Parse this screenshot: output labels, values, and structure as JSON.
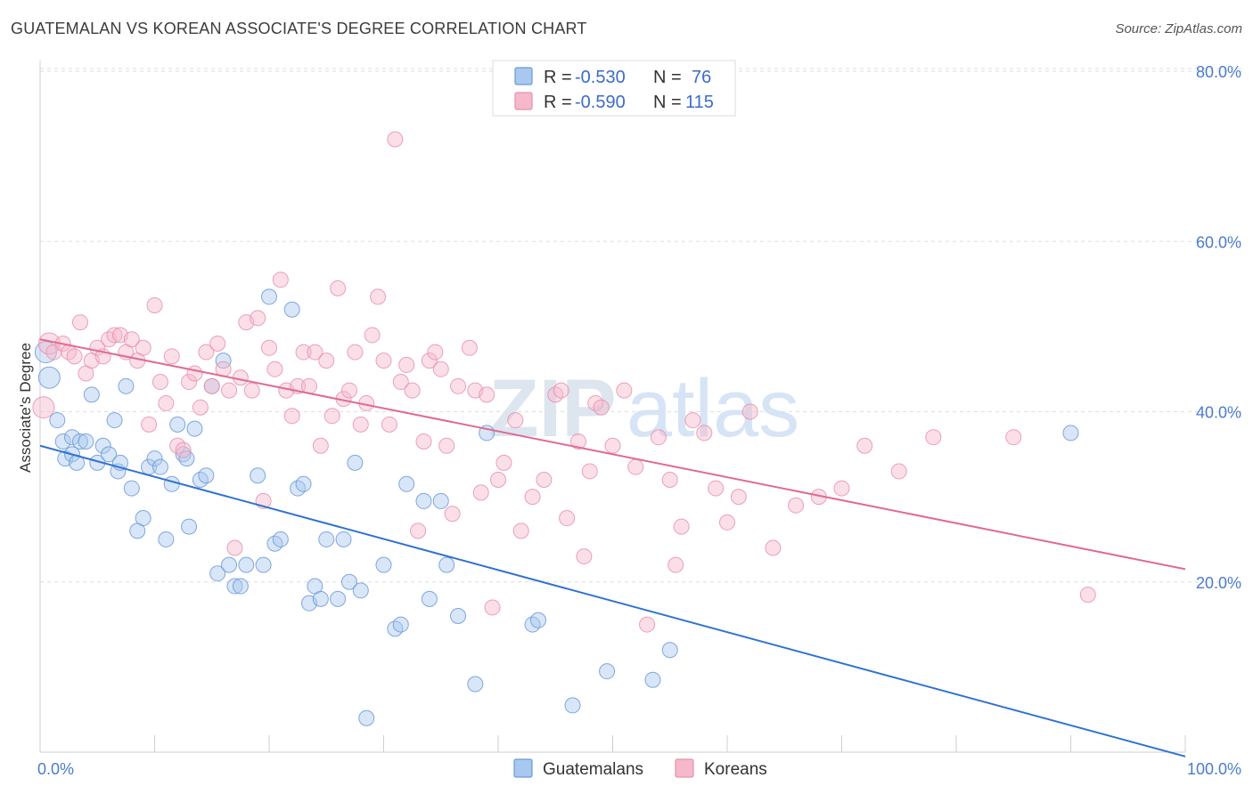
{
  "header": {
    "title": "GUATEMALAN VS KOREAN ASSOCIATE'S DEGREE CORRELATION CHART",
    "source": "Source: ZipAtlas.com"
  },
  "watermark": "ZIPatlas",
  "colors": {
    "guatemalan_fill": "#a8c8f0",
    "guatemalan_stroke": "#6a9ad8",
    "guatemalan_line": "#2f72d0",
    "korean_fill": "#f6b8cb",
    "korean_stroke": "#e890aa",
    "korean_line": "#e06a92"
  },
  "legend": {
    "rows": [
      {
        "r_label": "R = ",
        "r_value": "-0.530",
        "n_label": "N = ",
        "n_value": "76"
      },
      {
        "r_label": "R = ",
        "r_value": "-0.590",
        "n_label": "N = ",
        "n_value": "115"
      }
    ]
  },
  "chart_data": {
    "type": "scatter",
    "title": "GUATEMALAN VS KOREAN ASSOCIATE'S DEGREE CORRELATION CHART",
    "xlabel": "",
    "ylabel": "Associate's Degree",
    "xlim": [
      0,
      100
    ],
    "ylim": [
      0,
      80
    ],
    "x_tick_labels": [
      "0.0%",
      "100.0%"
    ],
    "y_ticks": [
      20,
      40,
      60,
      80
    ],
    "y_tick_labels": [
      "20.0%",
      "40.0%",
      "60.0%",
      "80.0%"
    ],
    "grid": true,
    "legend_position": "top-center",
    "series": [
      {
        "name": "Guatemalans",
        "r": -0.53,
        "n": 76,
        "trend": {
          "x": [
            0,
            100
          ],
          "y": [
            36.0,
            -0.5
          ]
        },
        "points": [
          [
            0.5,
            47.0
          ],
          [
            0.8,
            44.0
          ],
          [
            1.5,
            39.0
          ],
          [
            2.0,
            36.5
          ],
          [
            2.2,
            34.5
          ],
          [
            2.8,
            37.0
          ],
          [
            3.5,
            36.5
          ],
          [
            4.0,
            36.5
          ],
          [
            4.5,
            42.0
          ],
          [
            5.0,
            34.0
          ],
          [
            5.5,
            36.0
          ],
          [
            6.0,
            35.0
          ],
          [
            6.5,
            39.0
          ],
          [
            6.8,
            33.0
          ],
          [
            7.0,
            34.0
          ],
          [
            7.5,
            43.0
          ],
          [
            8.0,
            31.0
          ],
          [
            8.5,
            26.0
          ],
          [
            9.0,
            27.5
          ],
          [
            9.5,
            33.5
          ],
          [
            10.0,
            34.5
          ],
          [
            10.5,
            33.5
          ],
          [
            11.0,
            25.0
          ],
          [
            11.5,
            31.5
          ],
          [
            12.0,
            38.5
          ],
          [
            12.5,
            35.0
          ],
          [
            12.8,
            34.5
          ],
          [
            13.0,
            26.5
          ],
          [
            13.5,
            38.0
          ],
          [
            14.0,
            32.0
          ],
          [
            14.5,
            32.5
          ],
          [
            15.0,
            43.0
          ],
          [
            15.5,
            21.0
          ],
          [
            16.0,
            46.0
          ],
          [
            16.5,
            22.0
          ],
          [
            17.0,
            19.5
          ],
          [
            17.5,
            19.5
          ],
          [
            18.0,
            22.0
          ],
          [
            19.0,
            32.5
          ],
          [
            19.5,
            22.0
          ],
          [
            20.0,
            53.5
          ],
          [
            20.5,
            24.5
          ],
          [
            21.0,
            25.0
          ],
          [
            22.0,
            52.0
          ],
          [
            22.5,
            31.0
          ],
          [
            23.0,
            31.5
          ],
          [
            23.5,
            17.5
          ],
          [
            24.0,
            19.5
          ],
          [
            24.5,
            18.0
          ],
          [
            25.0,
            25.0
          ],
          [
            26.0,
            18.0
          ],
          [
            26.5,
            25.0
          ],
          [
            27.0,
            20.0
          ],
          [
            27.5,
            34.0
          ],
          [
            28.0,
            19.0
          ],
          [
            28.5,
            4.0
          ],
          [
            30.0,
            22.0
          ],
          [
            31.0,
            14.5
          ],
          [
            31.5,
            15.0
          ],
          [
            32.0,
            31.5
          ],
          [
            33.5,
            29.5
          ],
          [
            34.0,
            18.0
          ],
          [
            35.0,
            29.5
          ],
          [
            35.5,
            22.0
          ],
          [
            36.5,
            16.0
          ],
          [
            38.0,
            8.0
          ],
          [
            39.0,
            37.5
          ],
          [
            43.0,
            15.0
          ],
          [
            43.5,
            15.5
          ],
          [
            46.5,
            5.5
          ],
          [
            49.5,
            9.5
          ],
          [
            53.5,
            8.5
          ],
          [
            55.0,
            12.0
          ],
          [
            90.0,
            37.5
          ],
          [
            2.8,
            35.0
          ],
          [
            3.2,
            34.0
          ]
        ]
      },
      {
        "name": "Koreans",
        "r": -0.59,
        "n": 115,
        "trend": {
          "x": [
            0,
            100
          ],
          "y": [
            48.5,
            21.5
          ]
        },
        "points": [
          [
            0.3,
            40.5
          ],
          [
            0.8,
            48.0
          ],
          [
            1.2,
            47.0
          ],
          [
            2.0,
            48.0
          ],
          [
            2.5,
            47.0
          ],
          [
            3.0,
            46.5
          ],
          [
            3.5,
            50.5
          ],
          [
            4.0,
            44.5
          ],
          [
            4.5,
            46.0
          ],
          [
            5.0,
            47.5
          ],
          [
            5.5,
            46.5
          ],
          [
            6.0,
            48.5
          ],
          [
            6.5,
            49.0
          ],
          [
            7.0,
            49.0
          ],
          [
            7.5,
            47.0
          ],
          [
            8.0,
            48.5
          ],
          [
            8.5,
            46.0
          ],
          [
            9.0,
            47.5
          ],
          [
            9.5,
            38.5
          ],
          [
            10.0,
            52.5
          ],
          [
            10.5,
            43.5
          ],
          [
            11.0,
            41.0
          ],
          [
            11.5,
            46.5
          ],
          [
            12.0,
            36.0
          ],
          [
            12.5,
            35.5
          ],
          [
            13.0,
            43.5
          ],
          [
            13.5,
            44.5
          ],
          [
            14.0,
            40.5
          ],
          [
            14.5,
            47.0
          ],
          [
            15.0,
            43.0
          ],
          [
            15.5,
            48.0
          ],
          [
            16.0,
            45.0
          ],
          [
            16.5,
            42.5
          ],
          [
            17.0,
            24.0
          ],
          [
            17.5,
            44.0
          ],
          [
            18.0,
            50.5
          ],
          [
            18.5,
            42.5
          ],
          [
            19.0,
            51.0
          ],
          [
            19.5,
            29.5
          ],
          [
            20.0,
            47.5
          ],
          [
            20.5,
            45.0
          ],
          [
            21.0,
            55.5
          ],
          [
            21.5,
            42.5
          ],
          [
            22.0,
            39.5
          ],
          [
            22.5,
            43.0
          ],
          [
            23.0,
            47.0
          ],
          [
            23.5,
            43.0
          ],
          [
            24.0,
            47.0
          ],
          [
            24.5,
            36.0
          ],
          [
            25.0,
            46.0
          ],
          [
            25.5,
            39.5
          ],
          [
            26.0,
            54.5
          ],
          [
            26.5,
            41.5
          ],
          [
            27.0,
            42.5
          ],
          [
            27.5,
            47.0
          ],
          [
            28.0,
            38.5
          ],
          [
            28.5,
            41.0
          ],
          [
            29.0,
            49.0
          ],
          [
            29.5,
            53.5
          ],
          [
            30.0,
            46.0
          ],
          [
            30.5,
            38.5
          ],
          [
            31.0,
            72.0
          ],
          [
            31.5,
            43.5
          ],
          [
            32.0,
            45.5
          ],
          [
            32.5,
            42.5
          ],
          [
            33.0,
            26.0
          ],
          [
            33.5,
            36.5
          ],
          [
            34.0,
            46.0
          ],
          [
            34.5,
            47.0
          ],
          [
            35.0,
            45.0
          ],
          [
            35.5,
            36.0
          ],
          [
            36.0,
            28.0
          ],
          [
            36.5,
            43.0
          ],
          [
            37.5,
            47.5
          ],
          [
            38.0,
            42.5
          ],
          [
            38.5,
            30.5
          ],
          [
            39.0,
            42.0
          ],
          [
            39.5,
            17.0
          ],
          [
            40.0,
            32.0
          ],
          [
            40.5,
            34.0
          ],
          [
            41.5,
            39.0
          ],
          [
            42.0,
            26.0
          ],
          [
            43.0,
            30.0
          ],
          [
            44.0,
            32.0
          ],
          [
            45.0,
            42.0
          ],
          [
            45.5,
            42.5
          ],
          [
            46.0,
            27.5
          ],
          [
            47.0,
            36.5
          ],
          [
            47.5,
            23.0
          ],
          [
            48.0,
            33.0
          ],
          [
            48.5,
            41.0
          ],
          [
            49.0,
            40.5
          ],
          [
            50.0,
            36.0
          ],
          [
            51.0,
            42.5
          ],
          [
            52.0,
            33.5
          ],
          [
            53.0,
            15.0
          ],
          [
            54.0,
            37.0
          ],
          [
            55.0,
            32.0
          ],
          [
            55.5,
            22.0
          ],
          [
            56.0,
            26.5
          ],
          [
            57.0,
            39.0
          ],
          [
            58.0,
            37.5
          ],
          [
            59.0,
            31.0
          ],
          [
            60.0,
            27.0
          ],
          [
            61.0,
            30.0
          ],
          [
            62.0,
            40.0
          ],
          [
            64.0,
            24.0
          ],
          [
            66.0,
            29.0
          ],
          [
            68.0,
            30.0
          ],
          [
            70.0,
            31.0
          ],
          [
            72.0,
            36.0
          ],
          [
            75.0,
            33.0
          ],
          [
            78.0,
            37.0
          ],
          [
            85.0,
            37.0
          ],
          [
            91.5,
            18.5
          ]
        ]
      }
    ]
  },
  "bottom_legend": {
    "items": [
      {
        "label": "Guatemalans"
      },
      {
        "label": "Koreans"
      }
    ]
  }
}
